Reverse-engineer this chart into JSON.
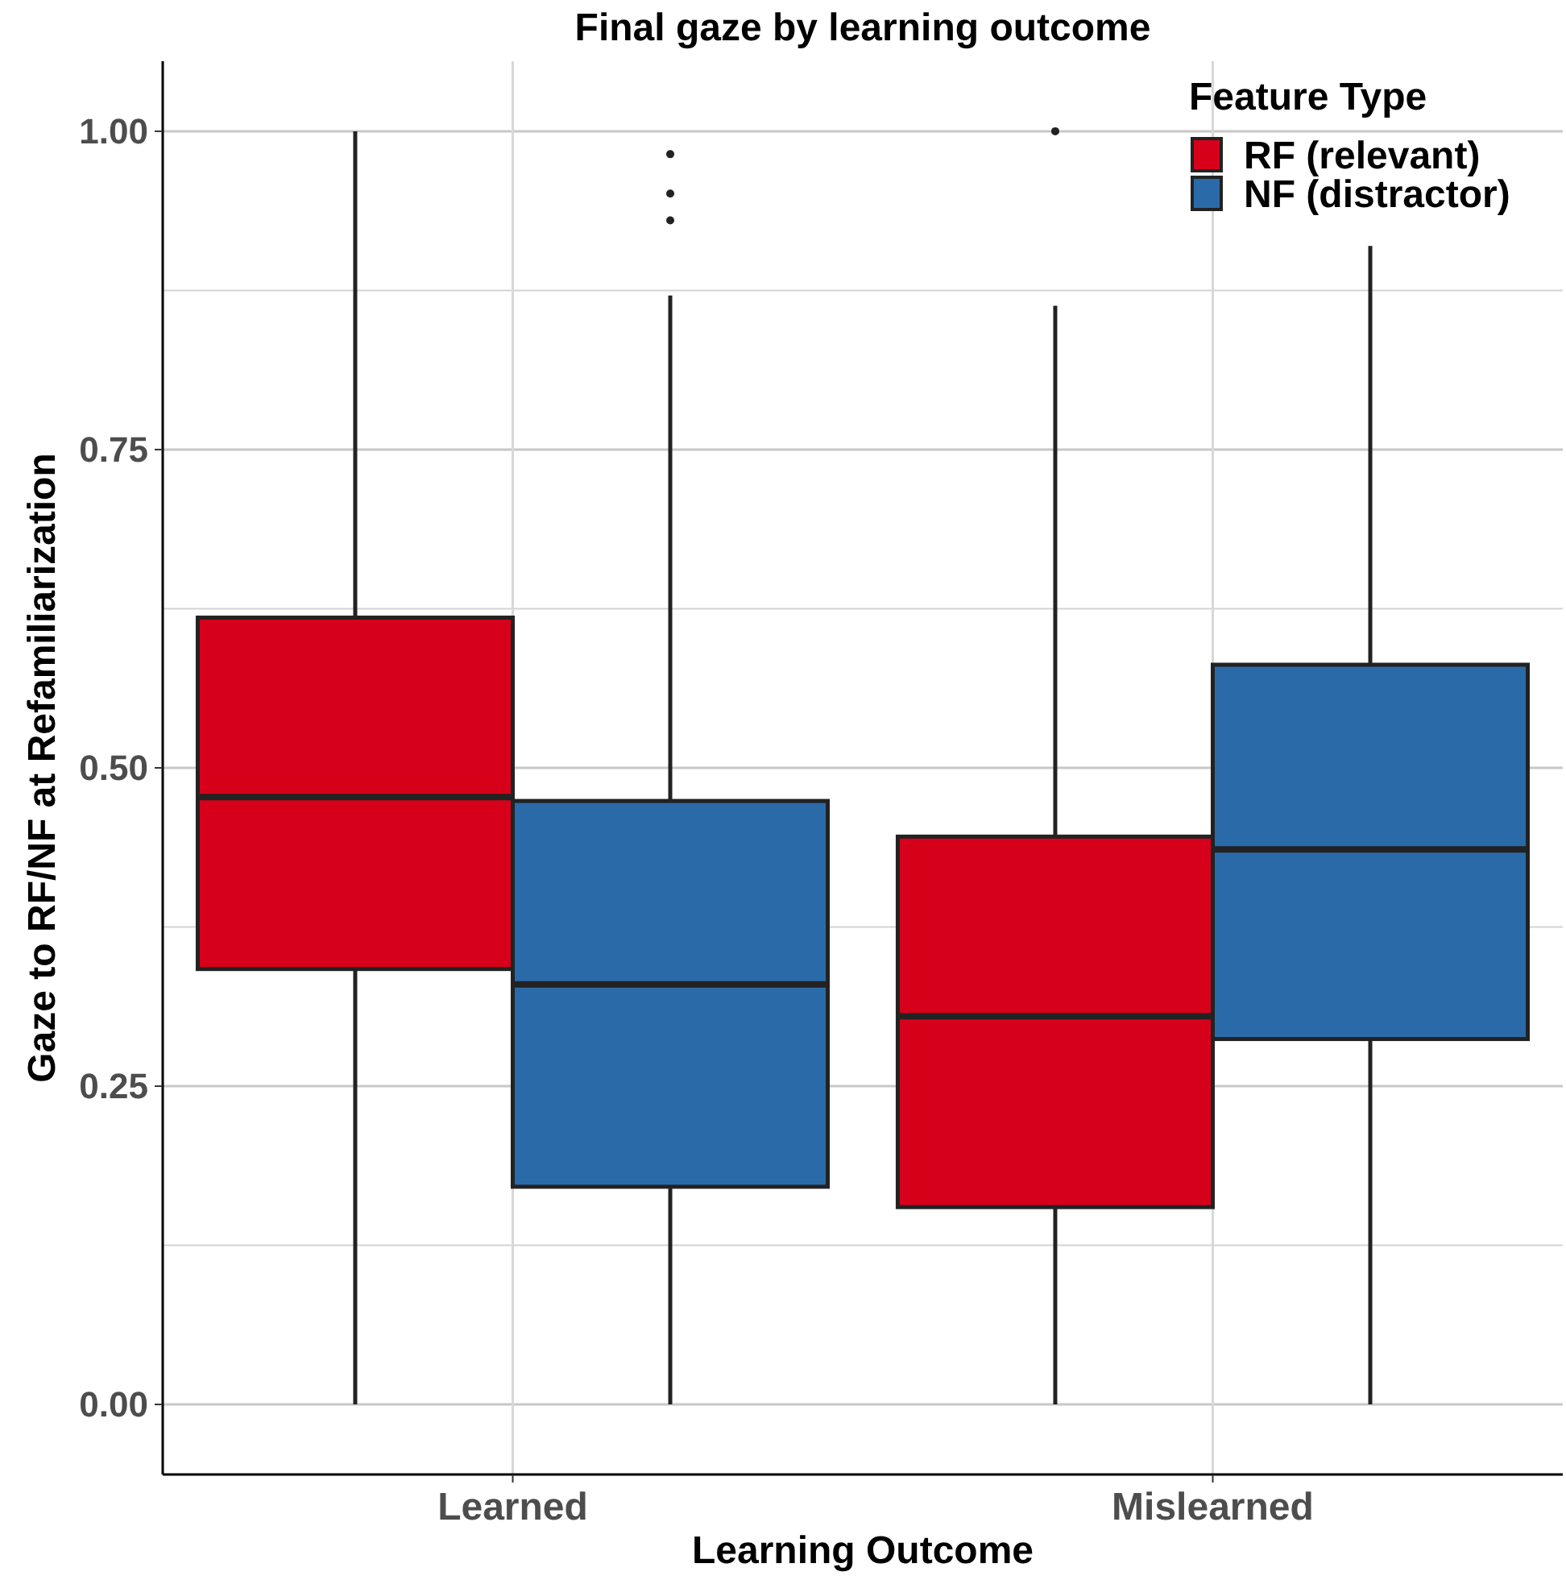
{
  "chart_data": {
    "type": "box",
    "title": "Final gaze by learning outcome",
    "xlabel": "Learning Outcome",
    "ylabel": "Gaze to RF/NF at Refamiliarization",
    "legend_title": "Feature Type",
    "categories": [
      "Learned",
      "Mislearned"
    ],
    "series": [
      {
        "name": "RF (relevant)",
        "color": "#d7001a",
        "boxes": [
          {
            "low": 0,
            "q1": 0.342,
            "median": 0.477,
            "q3": 0.618,
            "high": 1.0
          },
          {
            "low": 0,
            "q1": 0.155,
            "median": 0.305,
            "q3": 0.446,
            "high": 0.863,
            "outliers": [
              1.0
            ]
          }
        ]
      },
      {
        "name": "NF (distractor)",
        "color": "#2b6aa9",
        "boxes": [
          {
            "low": 0,
            "q1": 0.171,
            "median": 0.33,
            "q3": 0.474,
            "high": 0.871,
            "outliers": [
              0.93,
              0.951,
              0.982
            ]
          },
          {
            "low": 0,
            "q1": 0.287,
            "median": 0.436,
            "q3": 0.581,
            "high": 0.91
          }
        ]
      }
    ],
    "ylim": [
      -0.055,
      1.055
    ],
    "yticks": [
      {
        "value": 0,
        "label": "0.00"
      },
      {
        "value": 0.125,
        "label": null
      },
      {
        "value": 0.25,
        "label": "0.25"
      },
      {
        "value": 0.375,
        "label": null
      },
      {
        "value": 0.5,
        "label": "0.50"
      },
      {
        "value": 0.625,
        "label": null
      },
      {
        "value": 0.75,
        "label": "0.75"
      },
      {
        "value": 0.875,
        "label": null
      },
      {
        "value": 1,
        "label": "1.00"
      }
    ],
    "grid": true,
    "legend": "top right"
  }
}
